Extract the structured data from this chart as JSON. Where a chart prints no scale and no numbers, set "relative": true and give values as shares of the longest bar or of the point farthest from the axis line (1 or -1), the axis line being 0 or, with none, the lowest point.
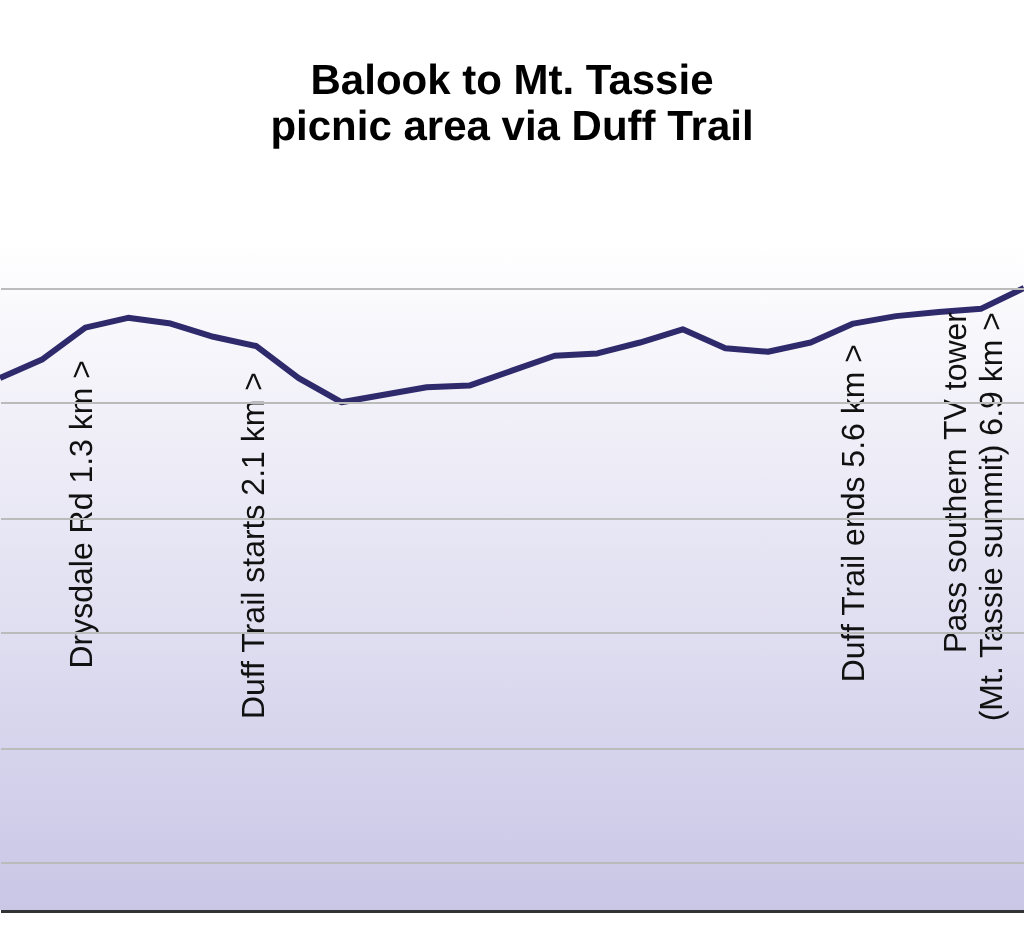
{
  "chart_data": {
    "type": "line",
    "title": "Balook to Mt. Tassie picnic area via Duff Trail",
    "relative": true,
    "grid": "y",
    "marker": "none",
    "line_style": "solid",
    "categories": [
      null,
      null,
      null,
      null,
      null,
      null,
      null,
      null,
      null,
      null,
      null,
      null,
      null,
      null,
      null,
      null,
      null,
      null,
      null,
      null,
      null,
      null,
      null,
      null,
      null
    ],
    "series": [
      {
        "color": "#2e2a6b",
        "values": [
          0.843,
          0.876,
          0.931,
          0.948,
          0.938,
          0.915,
          0.899,
          0.843,
          0.801,
          0.814,
          0.827,
          0.83,
          0.856,
          0.882,
          0.886,
          0.905,
          0.928,
          0.895,
          0.889,
          0.905,
          0.938,
          0.951,
          0.958,
          0.964,
          1.0
        ]
      }
    ],
    "annotations": [
      "Drysdale Rd 1.3 km >",
      "Duff Trail starts 2.1 km >",
      "Duff Trail ends 5.6 km >",
      "Pass southern TV tower\n(Mt. Tassie summit) 6.9 km >"
    ]
  }
}
